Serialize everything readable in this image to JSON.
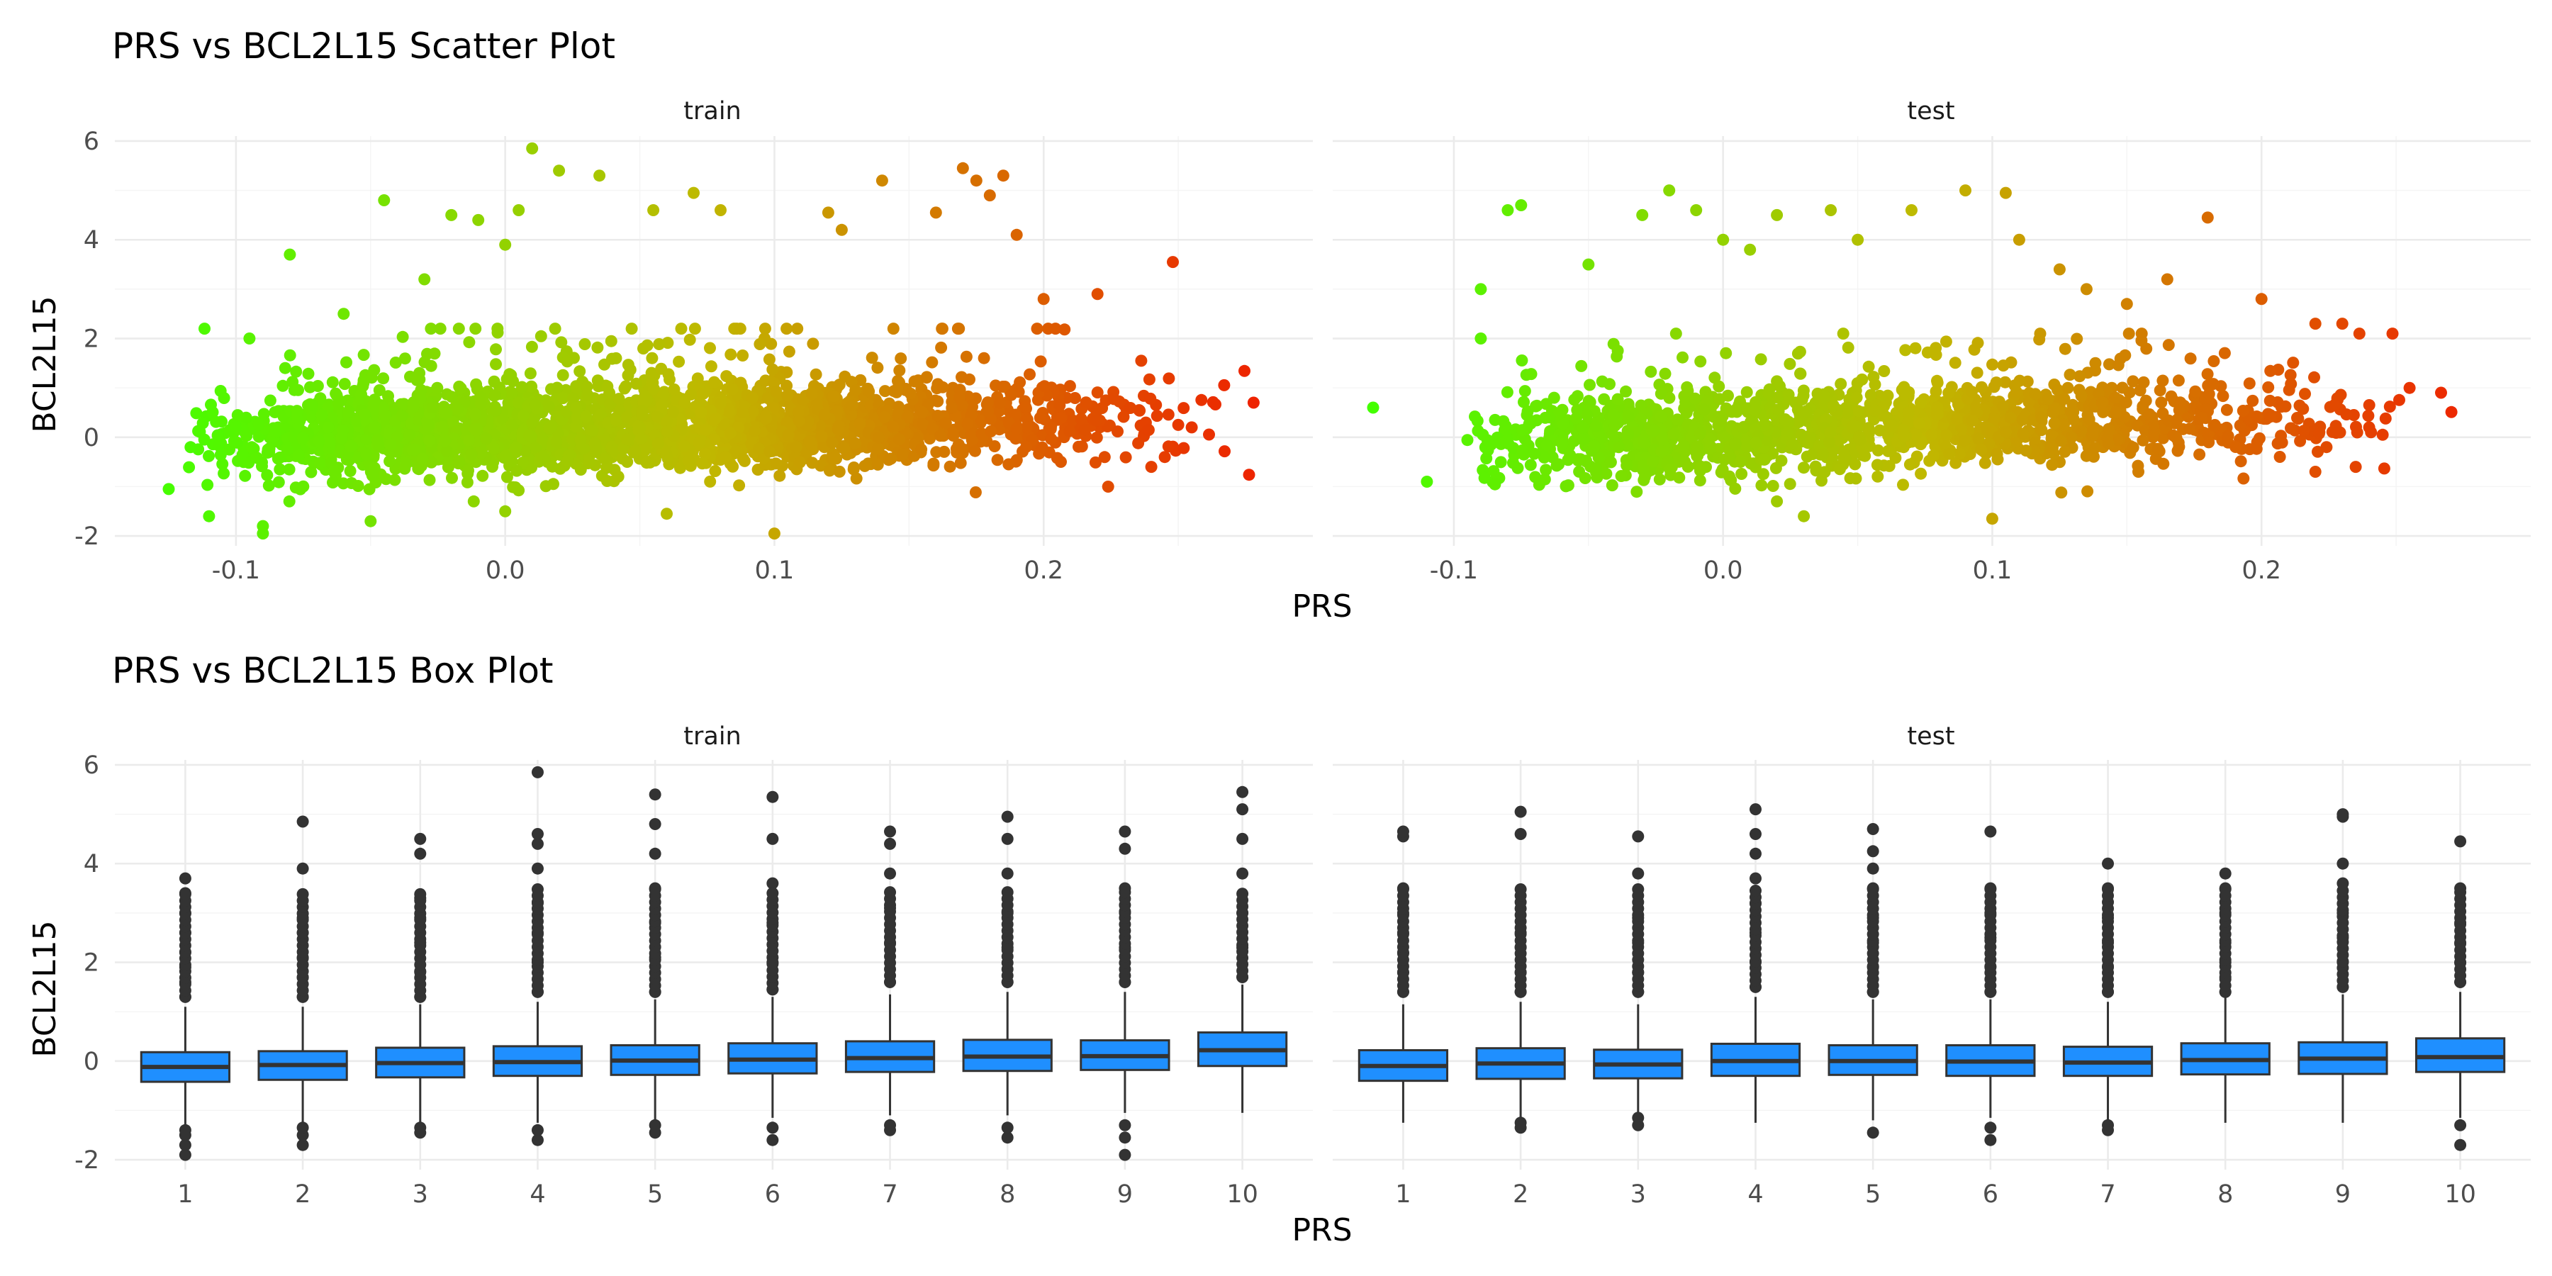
{
  "colors": {
    "gradient_low": "#44ff00",
    "gradient_mid": "#c0b800",
    "gradient_high": "#ee2200",
    "box_fill": "#1f8fff",
    "box_line": "#333333",
    "grid": "#ebebeb"
  },
  "chart_data": [
    {
      "type": "scatter",
      "title": "PRS vs BCL2L15 Scatter Plot",
      "xlabel": "PRS",
      "ylabel": "BCL2L15",
      "xlim": [
        -0.145,
        0.3
      ],
      "ylim": [
        -2.2,
        6.1
      ],
      "x_ticks": [
        -0.1,
        0.0,
        0.1,
        0.2
      ],
      "x_tick_labels": [
        "-0.1",
        "0.0",
        "0.1",
        "0.2"
      ],
      "y_ticks": [
        -2,
        0,
        2,
        4,
        6
      ],
      "y_tick_labels": [
        "-2",
        "0",
        "2",
        "4",
        "6"
      ],
      "grid": true,
      "color_scale": "green-to-red gradient by PRS",
      "panels": [
        {
          "name": "train",
          "points": [
            [
              -0.125,
              -1.05
            ],
            [
              -0.11,
              -1.6
            ],
            [
              -0.09,
              -1.8
            ],
            [
              -0.08,
              3.7
            ],
            [
              -0.095,
              2.0
            ],
            [
              -0.1,
              0.2
            ],
            [
              -0.06,
              2.5
            ],
            [
              -0.045,
              4.8
            ],
            [
              -0.03,
              3.2
            ],
            [
              -0.02,
              4.5
            ],
            [
              -0.01,
              4.4
            ],
            [
              0.0,
              3.9
            ],
            [
              0.005,
              4.6
            ],
            [
              0.01,
              5.85
            ],
            [
              0.02,
              5.4
            ],
            [
              0.035,
              5.3
            ],
            [
              0.055,
              4.6
            ],
            [
              0.07,
              4.95
            ],
            [
              0.08,
              4.6
            ],
            [
              0.12,
              4.55
            ],
            [
              0.125,
              4.2
            ],
            [
              0.14,
              5.2
            ],
            [
              0.16,
              4.55
            ],
            [
              0.17,
              5.45
            ],
            [
              0.175,
              5.2
            ],
            [
              0.18,
              4.9
            ],
            [
              0.185,
              5.3
            ],
            [
              0.19,
              4.1
            ],
            [
              0.2,
              2.8
            ],
            [
              0.22,
              2.9
            ],
            [
              0.248,
              3.55
            ],
            [
              0.278,
              0.7
            ],
            [
              0.25,
              0.25
            ],
            [
              0.255,
              0.2
            ],
            [
              0.245,
              -0.4
            ],
            [
              0.24,
              -0.6
            ],
            [
              -0.05,
              -1.7
            ],
            [
              0.1,
              -1.95
            ],
            [
              0.06,
              -1.55
            ],
            [
              -0.09,
              -1.95
            ],
            [
              0.0,
              -1.5
            ]
          ],
          "dense_cloud": {
            "x_range": [
              -0.12,
              0.23
            ],
            "y_range": [
              -1.2,
              1.6
            ]
          }
        },
        {
          "name": "test",
          "points": [
            [
              -0.13,
              0.6
            ],
            [
              -0.11,
              -0.9
            ],
            [
              -0.09,
              3.0
            ],
            [
              -0.09,
              2.0
            ],
            [
              -0.08,
              4.6
            ],
            [
              -0.075,
              4.7
            ],
            [
              -0.05,
              3.5
            ],
            [
              -0.03,
              4.5
            ],
            [
              -0.02,
              5.0
            ],
            [
              -0.01,
              4.6
            ],
            [
              0.0,
              4.0
            ],
            [
              0.01,
              3.8
            ],
            [
              0.02,
              4.5
            ],
            [
              0.04,
              4.6
            ],
            [
              0.05,
              4.0
            ],
            [
              0.07,
              4.6
            ],
            [
              0.09,
              5.0
            ],
            [
              0.105,
              4.95
            ],
            [
              0.11,
              4.0
            ],
            [
              0.125,
              3.4
            ],
            [
              0.135,
              3.0
            ],
            [
              0.15,
              2.7
            ],
            [
              0.165,
              3.2
            ],
            [
              0.18,
              4.45
            ],
            [
              0.2,
              2.8
            ],
            [
              0.22,
              2.3
            ],
            [
              0.23,
              2.3
            ],
            [
              0.24,
              0.2
            ],
            [
              0.245,
              0.05
            ],
            [
              0.255,
              1.0
            ],
            [
              0.235,
              -0.6
            ],
            [
              0.22,
              -0.7
            ],
            [
              0.03,
              -1.6
            ],
            [
              0.1,
              -1.65
            ],
            [
              0.02,
              -1.3
            ]
          ],
          "dense_cloud": {
            "x_range": [
              -0.1,
              0.23
            ],
            "y_range": [
              -1.2,
              1.5
            ]
          }
        }
      ]
    },
    {
      "type": "box",
      "title": "PRS vs BCL2L15 Box Plot",
      "xlabel": "PRS",
      "ylabel": "BCL2L15",
      "categories": [
        "1",
        "2",
        "3",
        "4",
        "5",
        "6",
        "7",
        "8",
        "9",
        "10"
      ],
      "ylim": [
        -2.2,
        6.1
      ],
      "y_ticks": [
        -2,
        0,
        2,
        4,
        6
      ],
      "y_tick_labels": [
        "-2",
        "0",
        "2",
        "4",
        "6"
      ],
      "grid": true,
      "panels": [
        {
          "name": "train",
          "boxes": [
            {
              "q1": -0.42,
              "median": -0.12,
              "q3": 0.18,
              "whisker_low": -1.3,
              "whisker_high": 1.1,
              "outliers": [
                -1.9,
                -1.7,
                -1.5,
                -1.4,
                1.3,
                1.6,
                1.9,
                2.2,
                2.6,
                3.0,
                3.4,
                3.7
              ]
            },
            {
              "q1": -0.38,
              "median": -0.08,
              "q3": 0.2,
              "whisker_low": -1.3,
              "whisker_high": 1.1,
              "outliers": [
                -1.7,
                -1.5,
                -1.35,
                1.3,
                1.7,
                2.1,
                2.6,
                2.9,
                3.9,
                4.85
              ]
            },
            {
              "q1": -0.33,
              "median": -0.04,
              "q3": 0.27,
              "whisker_low": -1.25,
              "whisker_high": 1.15,
              "outliers": [
                -1.45,
                -1.35,
                1.3,
                1.8,
                2.4,
                2.9,
                3.3,
                4.2,
                4.5
              ]
            },
            {
              "q1": -0.3,
              "median": -0.02,
              "q3": 0.3,
              "whisker_low": -1.25,
              "whisker_high": 1.2,
              "outliers": [
                -1.6,
                -1.4,
                1.4,
                2.0,
                2.6,
                3.2,
                3.9,
                4.4,
                4.6,
                5.85
              ]
            },
            {
              "q1": -0.28,
              "median": 0.01,
              "q3": 0.32,
              "whisker_low": -1.2,
              "whisker_high": 1.25,
              "outliers": [
                -1.45,
                -1.3,
                1.4,
                2.1,
                2.8,
                3.5,
                4.2,
                4.8,
                5.4
              ]
            },
            {
              "q1": -0.25,
              "median": 0.03,
              "q3": 0.36,
              "whisker_low": -1.15,
              "whisker_high": 1.3,
              "outliers": [
                -1.6,
                -1.35,
                1.45,
                2.0,
                2.8,
                3.6,
                4.5,
                5.35
              ]
            },
            {
              "q1": -0.22,
              "median": 0.06,
              "q3": 0.4,
              "whisker_low": -1.1,
              "whisker_high": 1.35,
              "outliers": [
                -1.4,
                -1.3,
                1.6,
                2.4,
                3.1,
                3.8,
                4.4,
                4.65
              ]
            },
            {
              "q1": -0.2,
              "median": 0.09,
              "q3": 0.43,
              "whisker_low": -1.1,
              "whisker_high": 1.4,
              "outliers": [
                -1.55,
                -1.35,
                1.6,
                2.3,
                3.0,
                3.8,
                4.5,
                4.95
              ]
            },
            {
              "q1": -0.18,
              "median": 0.1,
              "q3": 0.42,
              "whisker_low": -1.05,
              "whisker_high": 1.4,
              "outliers": [
                -1.9,
                -1.55,
                -1.3,
                1.6,
                2.3,
                3.0,
                3.5,
                4.3,
                4.65
              ]
            },
            {
              "q1": -0.1,
              "median": 0.22,
              "q3": 0.58,
              "whisker_low": -1.05,
              "whisker_high": 1.55,
              "outliers": [
                1.7,
                2.3,
                3.0,
                3.8,
                4.5,
                5.1,
                5.45
              ]
            }
          ]
        },
        {
          "name": "test",
          "boxes": [
            {
              "q1": -0.4,
              "median": -0.1,
              "q3": 0.22,
              "whisker_low": -1.25,
              "whisker_high": 1.15,
              "outliers": [
                1.4,
                1.8,
                2.2,
                2.6,
                3.0,
                3.5,
                4.55,
                4.65
              ]
            },
            {
              "q1": -0.36,
              "median": -0.05,
              "q3": 0.26,
              "whisker_low": -1.2,
              "whisker_high": 1.2,
              "outliers": [
                -1.35,
                -1.25,
                1.4,
                1.8,
                2.3,
                2.6,
                4.6,
                5.05
              ]
            },
            {
              "q1": -0.35,
              "median": -0.07,
              "q3": 0.23,
              "whisker_low": -1.1,
              "whisker_high": 1.15,
              "outliers": [
                -1.3,
                -1.15,
                1.4,
                1.8,
                2.4,
                2.9,
                3.8,
                4.55
              ]
            },
            {
              "q1": -0.3,
              "median": 0.0,
              "q3": 0.35,
              "whisker_low": -1.25,
              "whisker_high": 1.3,
              "outliers": [
                1.5,
                2.0,
                2.6,
                3.2,
                3.7,
                4.2,
                4.6,
                5.1
              ]
            },
            {
              "q1": -0.28,
              "median": 0.0,
              "q3": 0.32,
              "whisker_low": -1.2,
              "whisker_high": 1.25,
              "outliers": [
                -1.45,
                1.4,
                1.9,
                2.4,
                2.9,
                3.5,
                3.9,
                4.25,
                4.7
              ]
            },
            {
              "q1": -0.3,
              "median": -0.01,
              "q3": 0.32,
              "whisker_low": -1.15,
              "whisker_high": 1.25,
              "outliers": [
                -1.6,
                -1.35,
                1.4,
                1.9,
                2.5,
                3.0,
                3.5,
                4.65
              ]
            },
            {
              "q1": -0.3,
              "median": -0.03,
              "q3": 0.29,
              "whisker_low": -1.2,
              "whisker_high": 1.2,
              "outliers": [
                -1.4,
                -1.3,
                1.4,
                1.9,
                2.4,
                2.9,
                3.5,
                4.0
              ]
            },
            {
              "q1": -0.27,
              "median": 0.02,
              "q3": 0.36,
              "whisker_low": -1.25,
              "whisker_high": 1.3,
              "outliers": [
                1.4,
                1.7,
                2.0,
                2.4,
                3.0,
                3.5,
                3.8
              ]
            },
            {
              "q1": -0.26,
              "median": 0.05,
              "q3": 0.38,
              "whisker_low": -1.25,
              "whisker_high": 1.35,
              "outliers": [
                1.5,
                2.0,
                2.5,
                3.0,
                3.6,
                4.0,
                4.95,
                5.0
              ]
            },
            {
              "q1": -0.22,
              "median": 0.08,
              "q3": 0.46,
              "whisker_low": -1.15,
              "whisker_high": 1.4,
              "outliers": [
                -1.7,
                -1.3,
                1.6,
                2.0,
                2.4,
                2.8,
                3.5,
                4.45
              ]
            }
          ]
        }
      ]
    }
  ]
}
